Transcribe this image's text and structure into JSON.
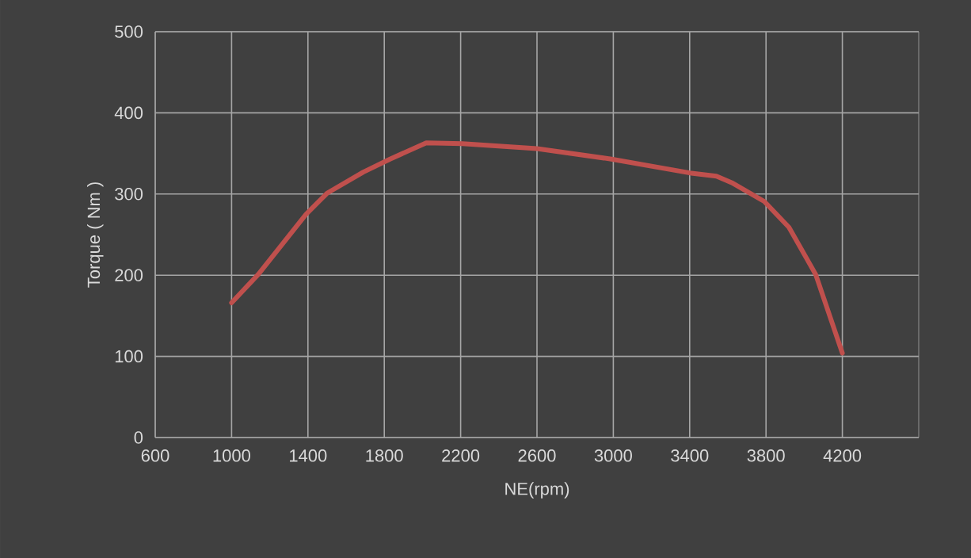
{
  "chart_data": {
    "type": "line",
    "xlabel": "NE(rpm)",
    "ylabel": "Torque ( Nm )",
    "x": [
      1000,
      1140,
      1390,
      1500,
      1690,
      1830,
      2020,
      2210,
      2600,
      2990,
      3400,
      3540,
      3620,
      3790,
      3920,
      4060,
      4200
    ],
    "series": [
      {
        "color": "#c0504d",
        "values": [
          166,
          201,
          275,
          301,
          327,
          343,
          363,
          362,
          356,
          343,
          326,
          322,
          314,
          291,
          259,
          201,
          104
        ]
      }
    ],
    "xlim": [
      600,
      4600
    ],
    "xticks": [
      600,
      1000,
      1400,
      1800,
      2200,
      2600,
      3000,
      3400,
      3800,
      4200
    ],
    "ylim": [
      0,
      500
    ],
    "yticks": [
      0,
      100,
      200,
      300,
      400,
      500
    ],
    "grid": true,
    "marker": "none",
    "line_style": "solid"
  }
}
